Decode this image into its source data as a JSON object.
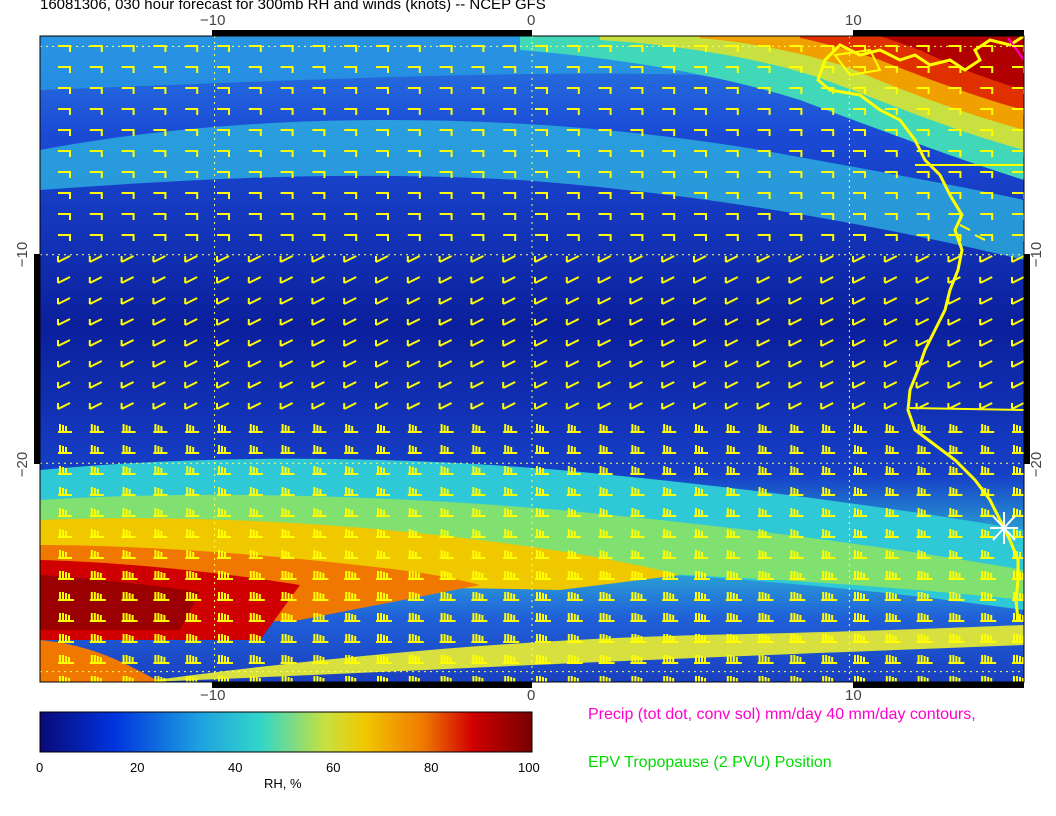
{
  "title": "16081306, 030 hour forecast for 300mb RH and winds (knots) -- NCEP GFS",
  "axes": {
    "x_ticks_top": [
      "−10",
      "0",
      "10"
    ],
    "x_ticks_bottom": [
      "−10",
      "0",
      "10"
    ],
    "y_ticks_left": [
      "−10",
      "−20"
    ],
    "y_ticks_right": [
      "−10",
      "−20"
    ],
    "xlim": [
      -15.5,
      15.5
    ],
    "ylim": [
      -30.5,
      0.5
    ]
  },
  "colorbar": {
    "ticks": [
      "0",
      "20",
      "40",
      "60",
      "80",
      "100"
    ],
    "label": "RH, %",
    "colors": [
      "#0a0a78",
      "#0033dd",
      "#1fa4e0",
      "#33d6c8",
      "#c8e040",
      "#f0c800",
      "#f07800",
      "#d00000",
      "#780000"
    ]
  },
  "annotations": {
    "precip": "Precip (tot dot, conv sol) mm/day 40 mm/day contours,",
    "epv": "EPV Tropopause (2 PVU) Position"
  },
  "colors": {
    "precip_text": "#ff00cc",
    "epv_text": "#00dd00",
    "coast": "#ffff00",
    "barbs": "#ffff00"
  }
}
